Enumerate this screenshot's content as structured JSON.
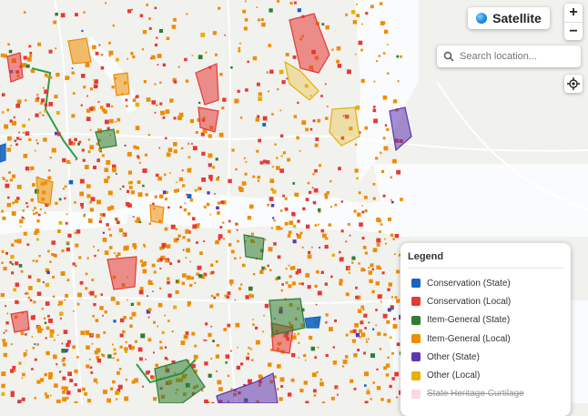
{
  "controls": {
    "basemap_button": "Satellite",
    "zoom_in": "+",
    "zoom_out": "−",
    "search_placeholder": "Search location..."
  },
  "legend": {
    "title": "Legend",
    "items": [
      {
        "label": "Conservation (State)",
        "color": "#1565c0",
        "hidden": false
      },
      {
        "label": "Conservation (Local)",
        "color": "#e53935",
        "hidden": false
      },
      {
        "label": "Item-General (State)",
        "color": "#2e7d32",
        "hidden": false
      },
      {
        "label": "Item-General (Local)",
        "color": "#ef8c00",
        "hidden": false
      },
      {
        "label": "Other (State)",
        "color": "#5e35b1",
        "hidden": false
      },
      {
        "label": "Other (Local)",
        "color": "#e6b000",
        "hidden": false
      },
      {
        "label": "State Heritage Curtilage",
        "color": "#f8bbd0",
        "hidden": true
      }
    ]
  }
}
